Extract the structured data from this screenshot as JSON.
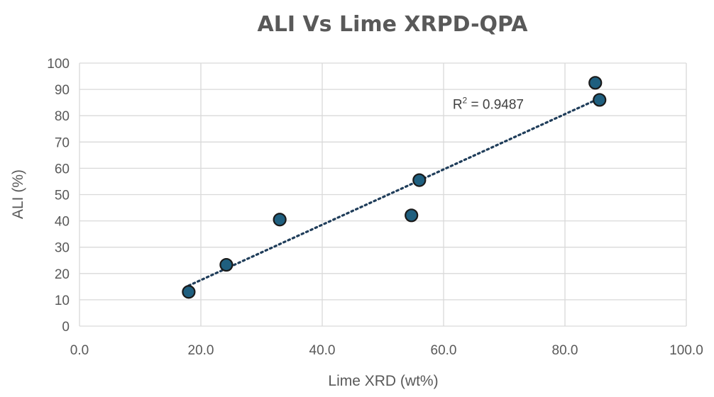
{
  "chart_data": {
    "type": "scatter",
    "title": "ALI Vs Lime XRPD-QPA",
    "xlabel": "Lime XRD (wt%)",
    "ylabel": "ALI (%)",
    "xlim": [
      0,
      100
    ],
    "ylim": [
      0,
      100
    ],
    "x_ticks": [
      "0.0",
      "20.0",
      "40.0",
      "60.0",
      "80.0",
      "100.0"
    ],
    "y_ticks": [
      "0",
      "10",
      "20",
      "30",
      "40",
      "50",
      "60",
      "70",
      "80",
      "90",
      "100"
    ],
    "grid": true,
    "series": [
      {
        "x": [
          18.0,
          24.2,
          33.0,
          54.7,
          56.0,
          85.0,
          85.7
        ],
        "y": [
          13.0,
          23.3,
          40.5,
          42.1,
          55.5,
          92.5,
          86.0
        ],
        "color": "#1f5f7f",
        "trendline": {
          "type": "linear",
          "dotted": true,
          "color": "#1f3d5a",
          "x_range": [
            18.0,
            85.7
          ],
          "y_range": [
            15.4,
            86.6
          ]
        }
      }
    ],
    "annotation": {
      "base": "R",
      "superscript": "2",
      "rest": " = 0.9487",
      "anchor": [
        61.5,
        84.5
      ]
    }
  }
}
